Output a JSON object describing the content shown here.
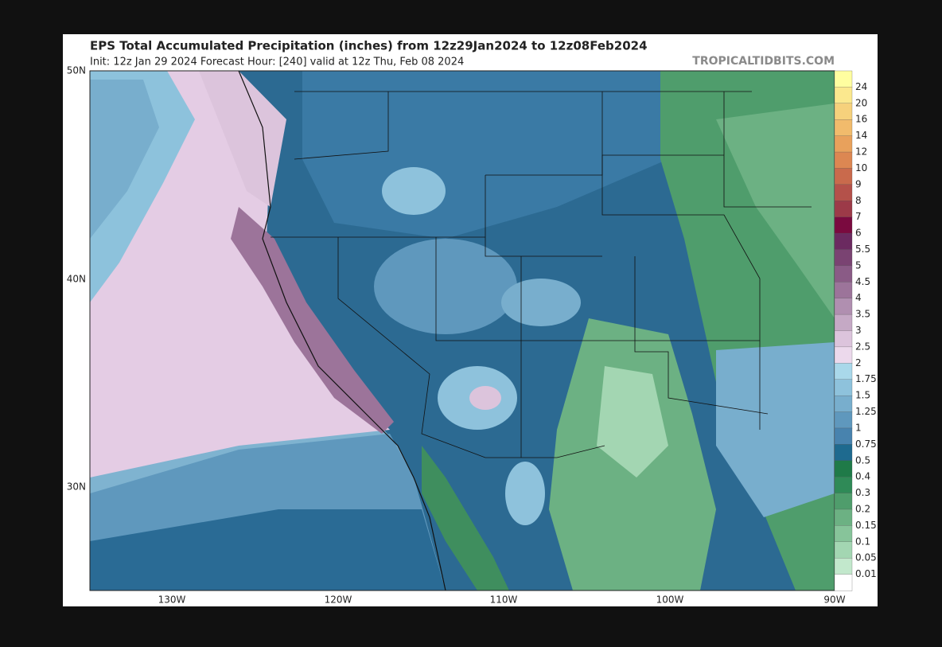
{
  "header": {
    "title": "EPS Total Accumulated Precipitation (inches) from 12z29Jan2024 to 12z08Feb2024",
    "subtitle": "Init: 12z Jan 29 2024   Forecast Hour: [240]   valid at 12z Thu, Feb 08 2024",
    "brand": "TROPICALTIDBITS.COM"
  },
  "axes": {
    "lat_labels": [
      "50N",
      "40N",
      "30N"
    ],
    "lon_labels": [
      "130W",
      "120W",
      "110W",
      "100W",
      "90W"
    ]
  },
  "colorbar": {
    "labels": [
      24,
      20,
      16,
      14,
      12,
      10,
      9,
      8,
      7,
      6,
      5.5,
      5,
      4.5,
      4,
      3.5,
      3,
      2.5,
      2,
      1.75,
      1.5,
      1.25,
      1,
      0.75,
      0.5,
      0.4,
      0.3,
      0.2,
      0.15,
      0.1,
      0.05,
      0.01
    ],
    "colors": [
      "#fffea0",
      "#fbe88e",
      "#f6d17c",
      "#f1bb6c",
      "#e8a15c",
      "#dc8752",
      "#c96a4c",
      "#b4514a",
      "#9c3a48",
      "#7a0a3f",
      "#6b2a60",
      "#7a4372",
      "#8a5b86",
      "#9c749a",
      "#b08fb0",
      "#c5a9c5",
      "#dcc4dc",
      "#ecd9ec",
      "#a9d8ea",
      "#8ec2dc",
      "#78aecd",
      "#5f98bd",
      "#4883ae",
      "#1e6a8f",
      "#1f7a48",
      "#2f8a57",
      "#4f9d6c",
      "#6cb183",
      "#87c49a",
      "#a3d6b2",
      "#c2e8cc",
      "#ffffff"
    ]
  }
}
